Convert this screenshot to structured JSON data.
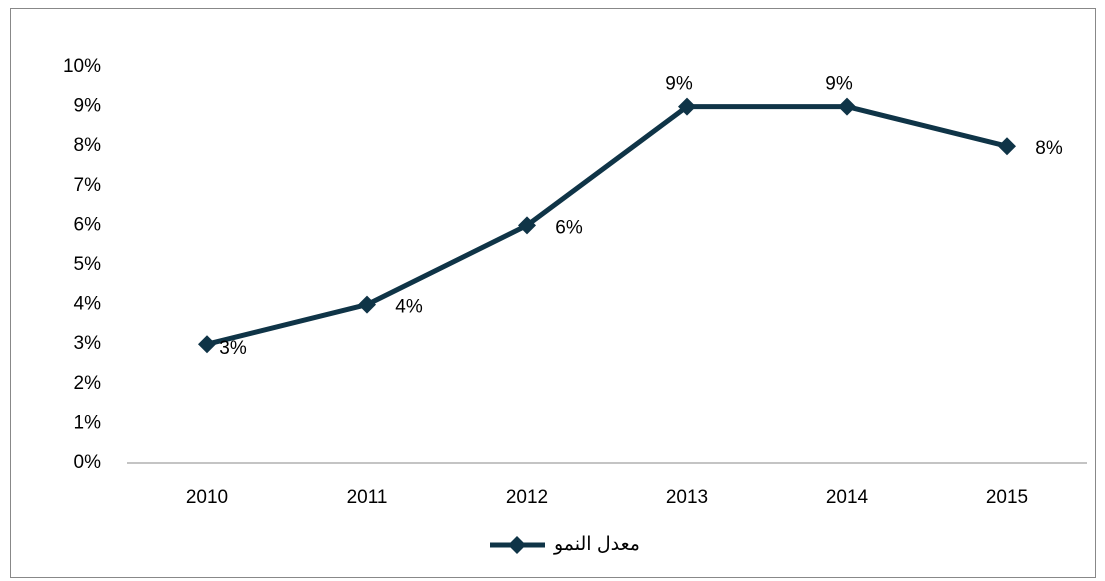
{
  "chart_data": {
    "type": "line",
    "categories": [
      "2010",
      "2011",
      "2012",
      "2013",
      "2014",
      "2015"
    ],
    "series": [
      {
        "name": "معدل النمو",
        "color": "#0f3447",
        "values": [
          3,
          4,
          6,
          9,
          9,
          8
        ],
        "value_labels": [
          "3%",
          "4%",
          "6%",
          "9%",
          "9%",
          "8%"
        ]
      }
    ],
    "ylim": [
      0,
      10
    ],
    "yticks": [
      {
        "value": 0,
        "label": "0%"
      },
      {
        "value": 1,
        "label": "1%"
      },
      {
        "value": 2,
        "label": "2%"
      },
      {
        "value": 3,
        "label": "3%"
      },
      {
        "value": 4,
        "label": "4%"
      },
      {
        "value": 5,
        "label": "5%"
      },
      {
        "value": 6,
        "label": "6%"
      },
      {
        "value": 7,
        "label": "7%"
      },
      {
        "value": 8,
        "label": "8%"
      },
      {
        "value": 9,
        "label": "9%"
      },
      {
        "value": 10,
        "label": "10%"
      }
    ],
    "grid": false,
    "legend": "bottom"
  }
}
